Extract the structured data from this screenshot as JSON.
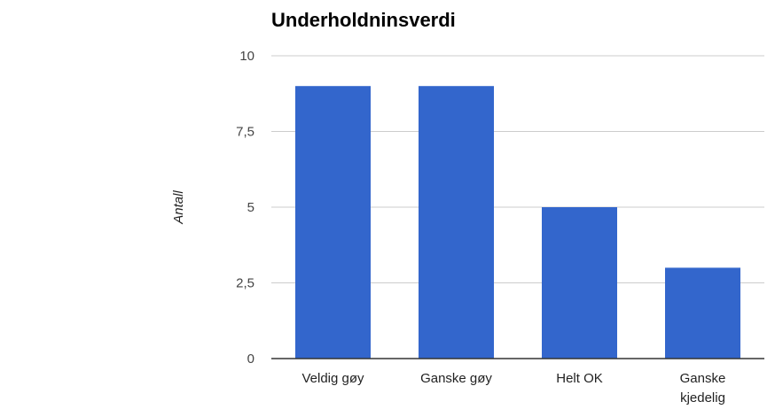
{
  "chart_data": {
    "type": "bar",
    "title": "Underholdninsverdi",
    "xlabel": "",
    "ylabel": "Antall",
    "categories": [
      "Veldig gøy",
      "Ganske gøy",
      "Helt OK",
      "Ganske kjedelig"
    ],
    "category_label_lines": [
      [
        "Veldig gøy"
      ],
      [
        "Ganske gøy"
      ],
      [
        "Helt OK"
      ],
      [
        "Ganske",
        "kjedelig"
      ]
    ],
    "values": [
      9,
      9,
      5,
      3
    ],
    "ylim": [
      0,
      10
    ],
    "yticks": [
      0,
      2.5,
      5,
      7.5,
      10
    ],
    "ytick_labels": [
      "0",
      "2,5",
      "5",
      "7,5",
      "10"
    ],
    "grid": true,
    "legend": "none",
    "bar_color": "#3366cc",
    "grid_color": "#cccccc",
    "axis_color": "#333333"
  }
}
